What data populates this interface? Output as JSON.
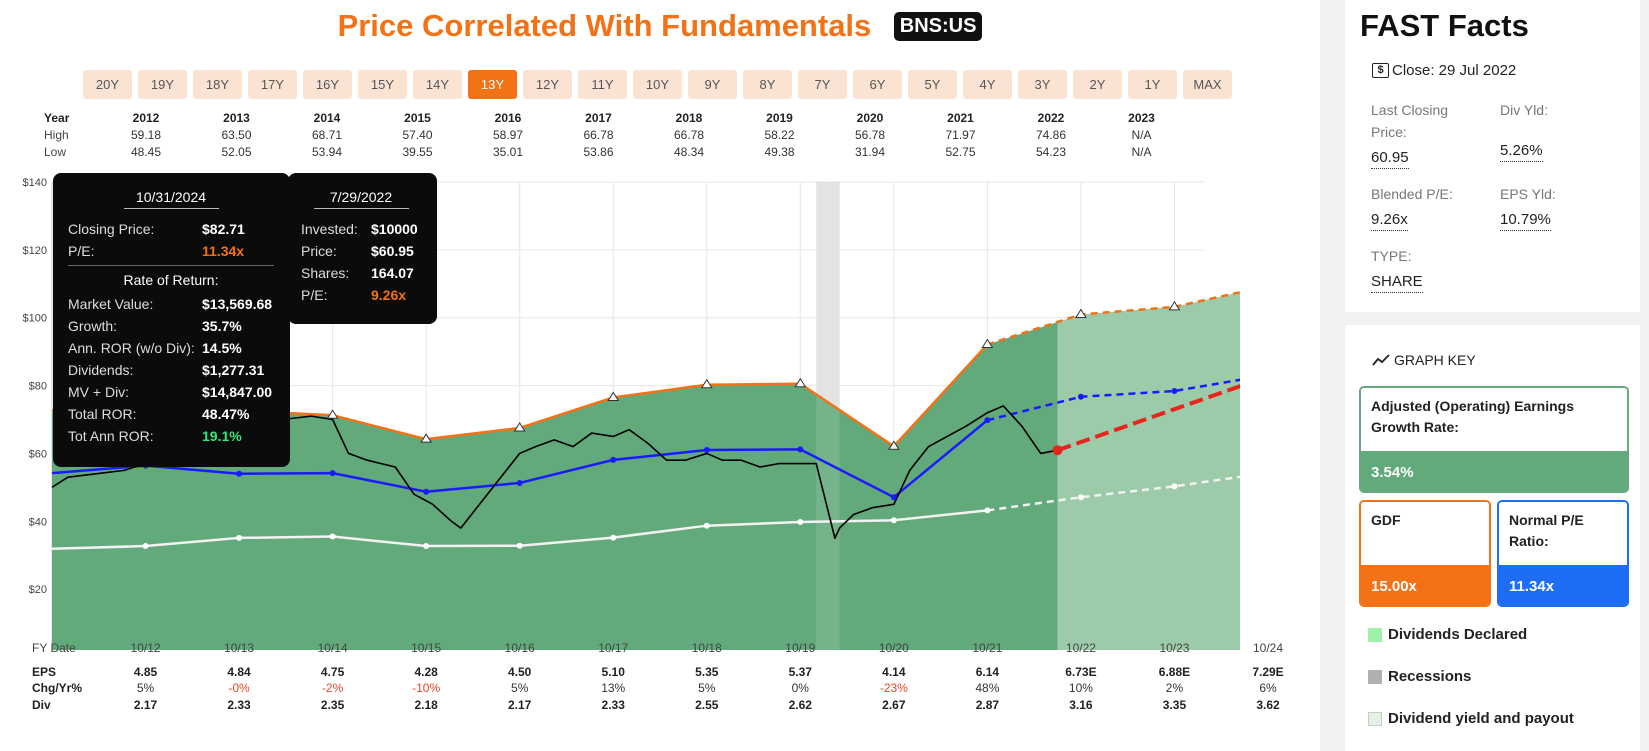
{
  "title": "Price Correlated With Fundamentals",
  "ticker": "BNS:US",
  "ranges": [
    "20Y",
    "19Y",
    "18Y",
    "17Y",
    "16Y",
    "15Y",
    "14Y",
    "13Y",
    "12Y",
    "11Y",
    "10Y",
    "9Y",
    "8Y",
    "7Y",
    "6Y",
    "5Y",
    "4Y",
    "3Y",
    "2Y",
    "1Y",
    "MAX"
  ],
  "active_range": "13Y",
  "year_table": {
    "labels": [
      "Year",
      "High",
      "Low"
    ],
    "years": [
      "2012",
      "2013",
      "2014",
      "2015",
      "2016",
      "2017",
      "2018",
      "2019",
      "2020",
      "2021",
      "2022",
      "2023"
    ],
    "high": [
      "59.18",
      "63.50",
      "68.71",
      "57.40",
      "58.97",
      "66.78",
      "66.78",
      "58.22",
      "56.78",
      "71.97",
      "74.86",
      "N/A"
    ],
    "low": [
      "48.45",
      "52.05",
      "53.94",
      "39.55",
      "35.01",
      "53.86",
      "48.34",
      "49.38",
      "31.94",
      "52.75",
      "54.23",
      "N/A"
    ]
  },
  "tooltip_left": {
    "date": "10/31/2024",
    "closing_price_label": "Closing Price:",
    "closing_price": "$82.71",
    "pe_label": "P/E:",
    "pe": "11.34x",
    "ror_heading": "Rate of Return:",
    "rows": [
      {
        "label": "Market Value:",
        "value": "$13,569.68"
      },
      {
        "label": "Growth:",
        "value": "35.7%"
      },
      {
        "label": "Ann. ROR (w/o Div):",
        "value": "14.5%"
      },
      {
        "label": "Dividends:",
        "value": "$1,277.31"
      },
      {
        "label": "MV + Div:",
        "value": "$14,847.00"
      },
      {
        "label": "Total ROR:",
        "value": "48.47%"
      }
    ],
    "tot_ann_label": "Tot Ann ROR:",
    "tot_ann": "19.1%"
  },
  "tooltip_right": {
    "date": "7/29/2022",
    "rows": [
      {
        "label": "Invested:",
        "value": "$10000"
      },
      {
        "label": "Price:",
        "value": "$60.95"
      },
      {
        "label": "Shares:",
        "value": "164.07"
      }
    ],
    "pe_label": "P/E:",
    "pe": "9.26x"
  },
  "bottom_table": {
    "fy_label": "FY Date",
    "fy": [
      "10/12",
      "10/13",
      "10/14",
      "10/15",
      "10/16",
      "10/17",
      "10/18",
      "10/19",
      "10/20",
      "10/21",
      "10/22",
      "10/23",
      "10/24"
    ],
    "eps_label": "EPS",
    "eps": [
      "4.85",
      "4.84",
      "4.75",
      "4.28",
      "4.50",
      "5.10",
      "5.35",
      "5.37",
      "4.14",
      "6.14",
      "6.73E",
      "6.88E",
      "7.29E"
    ],
    "chg_label": "Chg/Yr%",
    "chg": [
      "5%",
      "-0%",
      "-2%",
      "-10%",
      "5%",
      "13%",
      "5%",
      "0%",
      "-23%",
      "48%",
      "10%",
      "2%",
      "6%"
    ],
    "div_label": "Div",
    "div": [
      "2.17",
      "2.33",
      "2.35",
      "2.18",
      "2.17",
      "2.33",
      "2.55",
      "2.62",
      "2.67",
      "2.87",
      "3.16",
      "3.35",
      "3.62"
    ]
  },
  "fast_facts": {
    "title": "FAST Facts",
    "close": "Close: 29 Jul 2022",
    "last_closing_label": "Last Closing Price:",
    "last_closing": "60.95",
    "div_yld_label": "Div Yld:",
    "div_yld": "5.26%",
    "blended_pe_label": "Blended P/E:",
    "blended_pe": "9.26x",
    "eps_yld_label": "EPS Yld:",
    "eps_yld": "10.79%",
    "type_label": "TYPE:",
    "type": "SHARE"
  },
  "graph_key": {
    "title": "GRAPH KEY",
    "earnings_label": "Adjusted (Operating) Earnings Growth Rate:",
    "earnings_value": "3.54%",
    "gdf_label": "GDF",
    "gdf_value": "15.00x",
    "normal_pe_label": "Normal P/E Ratio:",
    "normal_pe_value": "11.34x",
    "legend": [
      "Dividends Declared",
      "Recessions",
      "Dividend yield and payout"
    ]
  },
  "colors": {
    "accent": "#f47216",
    "green": "#62a97c",
    "green_light": "#9ccbaa",
    "blue": "#1a1aff",
    "gray_bar": "#e0e0e0",
    "graph_key_blue": "#1e6ef5",
    "graph_key_green": "#62a97c"
  },
  "chart_data": {
    "type": "line",
    "x": [
      2012.83,
      2013.83,
      2014.83,
      2015.83,
      2016.83,
      2017.83,
      2018.83,
      2019.83,
      2020.83,
      2021.83,
      2022.83,
      2023.83,
      2024.83
    ],
    "xlim": [
      2011.83,
      2024.83
    ],
    "ylim": [
      0,
      140
    ],
    "y_ticks": [
      "$0",
      "$20",
      "$40",
      "$60",
      "$80",
      "$100",
      "$120",
      "$140"
    ],
    "x_tick_labels": [
      "10/12",
      "10/13",
      "10/14",
      "10/15",
      "10/16",
      "10/17",
      "10/18",
      "10/19",
      "10/20",
      "10/21",
      "10/22",
      "10/23",
      "10/24"
    ],
    "series": [
      {
        "values": [
          72.75,
          72.6,
          71.25,
          64.2,
          67.5,
          76.5,
          80.25,
          80.55,
          62.1,
          92.1,
          100.95,
          103.2,
          109.35
        ],
        "estimated_from_index": 10
      },
      {
        "values": [
          56.4,
          54.0,
          54.2,
          48.7,
          51.3,
          58.1,
          61.0,
          61.2,
          47.1,
          69.8,
          76.7,
          78.4,
          83.1
        ],
        "estimated_from_index": 10
      },
      {
        "values": [
          32.7,
          35.1,
          35.5,
          32.7,
          32.8,
          35.2,
          38.7,
          39.8,
          40.3,
          43.2,
          47.1,
          50.3,
          54.3
        ],
        "estimated_from_index": 10
      },
      {
        "x": [
          2022.58,
          2024.83
        ],
        "values": [
          60.95,
          82.71
        ]
      }
    ],
    "price": {
      "x": [
        2011.83,
        2012.0,
        2012.3,
        2012.6,
        2012.83,
        2013.1,
        2013.4,
        2013.7,
        2013.83,
        2014.0,
        2014.3,
        2014.6,
        2014.83,
        2015.0,
        2015.2,
        2015.5,
        2015.7,
        2015.9,
        2016.1,
        2016.2,
        2016.4,
        2016.6,
        2016.83,
        2017.0,
        2017.2,
        2017.4,
        2017.6,
        2017.83,
        2018.0,
        2018.2,
        2018.4,
        2018.6,
        2018.83,
        2019.0,
        2019.2,
        2019.4,
        2019.6,
        2019.83,
        2020.0,
        2020.2,
        2020.25,
        2020.4,
        2020.6,
        2020.83,
        2021.0,
        2021.2,
        2021.4,
        2021.6,
        2021.83,
        2022.0,
        2022.2,
        2022.4,
        2022.58
      ],
      "values": [
        50,
        53,
        54,
        55,
        57,
        58,
        60,
        62,
        64,
        68,
        70,
        71,
        70,
        60,
        58,
        56,
        48,
        45,
        40,
        38,
        45,
        52,
        60,
        62,
        64,
        62,
        66,
        65,
        67,
        63,
        58,
        58,
        60,
        58,
        58,
        56,
        57,
        57,
        57,
        35,
        38,
        42,
        44,
        45,
        55,
        62,
        65,
        68,
        72,
        74,
        68,
        60,
        60.95
      ]
    },
    "recession": [
      2020.0,
      2020.25
    ],
    "forecast_start": 2022.58
  }
}
